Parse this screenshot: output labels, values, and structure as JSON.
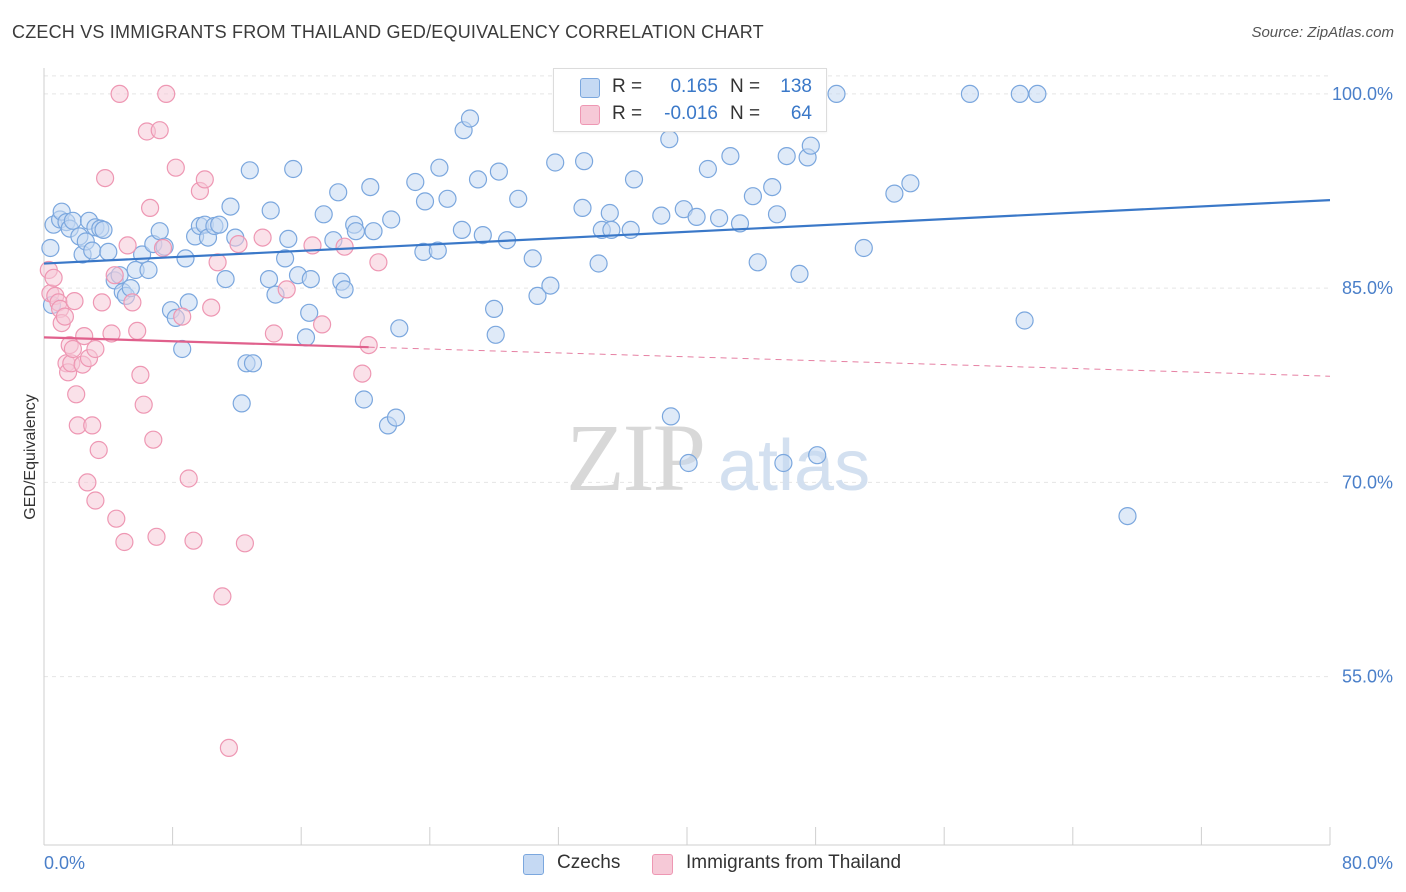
{
  "header": {
    "title": "CZECH VS IMMIGRANTS FROM THAILAND GED/EQUIVALENCY CORRELATION CHART",
    "source": "Source: ZipAtlas.com"
  },
  "legend": {
    "r_label": "R =",
    "n_label": "N =",
    "rows": [
      {
        "r": "0.165",
        "n": "138"
      },
      {
        "r": "-0.016",
        "n": "64"
      }
    ]
  },
  "watermark": {
    "zip": "ZIP",
    "atlas": "atlas"
  },
  "colors": {
    "blue": "#3a78c8",
    "blue_fill": "#c5d9f3",
    "blue_stroke": "#7ba7de",
    "pink": "#e0608c",
    "pink_fill": "#f6c9d7",
    "pink_stroke": "#ee97b3",
    "grid": "#e5e5e5",
    "axis_label": "#4a7fc9"
  },
  "chart_data": {
    "type": "scatter",
    "title": "CZECH VS IMMIGRANTS FROM THAILAND GED/EQUIVALENCY CORRELATION CHART",
    "xlabel": "",
    "ylabel": "GED/Equivalency",
    "xlim": [
      0,
      80
    ],
    "ylim": [
      42,
      102
    ],
    "x_tick_labels": [
      "0.0%",
      "80.0%"
    ],
    "y_ticks": [
      55,
      70,
      85,
      100
    ],
    "y_tick_labels": [
      "55.0%",
      "70.0%",
      "85.0%",
      "100.0%"
    ],
    "legend_location": "top-center",
    "series": [
      {
        "name": "Czechs",
        "r": 0.165,
        "n": 138,
        "trend": {
          "x0": 0,
          "y0": 86.9,
          "x1": 80,
          "y1": 91.8,
          "dashed_from": null
        },
        "points": [
          [
            0.4,
            88.1
          ],
          [
            0.5,
            83.7
          ],
          [
            0.6,
            89.9
          ],
          [
            1.0,
            90.3
          ],
          [
            1.1,
            90.9
          ],
          [
            1.4,
            90.1
          ],
          [
            1.6,
            89.6
          ],
          [
            1.8,
            90.2
          ],
          [
            2.2,
            89.0
          ],
          [
            2.4,
            87.6
          ],
          [
            2.6,
            88.6
          ],
          [
            2.8,
            90.2
          ],
          [
            3.0,
            87.9
          ],
          [
            3.2,
            89.7
          ],
          [
            3.5,
            89.6
          ],
          [
            3.7,
            89.5
          ],
          [
            4.0,
            87.8
          ],
          [
            4.4,
            85.6
          ],
          [
            4.7,
            86.0
          ],
          [
            4.9,
            84.7
          ],
          [
            5.1,
            84.4
          ],
          [
            5.4,
            85.0
          ],
          [
            5.7,
            86.4
          ],
          [
            6.1,
            87.6
          ],
          [
            6.5,
            86.4
          ],
          [
            6.8,
            88.4
          ],
          [
            7.2,
            89.4
          ],
          [
            7.5,
            88.2
          ],
          [
            7.9,
            83.3
          ],
          [
            8.2,
            82.7
          ],
          [
            8.6,
            80.3
          ],
          [
            8.8,
            87.3
          ],
          [
            9.0,
            83.9
          ],
          [
            9.4,
            89.0
          ],
          [
            9.7,
            89.8
          ],
          [
            10.0,
            89.9
          ],
          [
            10.2,
            88.9
          ],
          [
            10.6,
            89.8
          ],
          [
            10.9,
            89.9
          ],
          [
            11.3,
            85.7
          ],
          [
            11.6,
            91.3
          ],
          [
            11.9,
            88.9
          ],
          [
            12.3,
            76.1
          ],
          [
            12.6,
            79.2
          ],
          [
            12.8,
            94.1
          ],
          [
            13.0,
            79.2
          ],
          [
            14.0,
            85.7
          ],
          [
            14.1,
            91.0
          ],
          [
            14.4,
            84.5
          ],
          [
            15.0,
            87.3
          ],
          [
            15.2,
            88.8
          ],
          [
            15.5,
            94.2
          ],
          [
            15.8,
            86.0
          ],
          [
            16.3,
            81.2
          ],
          [
            16.5,
            83.1
          ],
          [
            16.6,
            85.7
          ],
          [
            17.4,
            90.7
          ],
          [
            18.0,
            88.7
          ],
          [
            18.3,
            92.4
          ],
          [
            18.5,
            85.5
          ],
          [
            18.7,
            84.9
          ],
          [
            19.3,
            89.9
          ],
          [
            19.4,
            89.4
          ],
          [
            19.9,
            76.4
          ],
          [
            20.3,
            92.8
          ],
          [
            20.5,
            89.4
          ],
          [
            21.4,
            74.4
          ],
          [
            21.6,
            90.3
          ],
          [
            21.9,
            75.0
          ],
          [
            22.1,
            81.9
          ],
          [
            23.1,
            93.2
          ],
          [
            23.6,
            87.8
          ],
          [
            23.7,
            91.7
          ],
          [
            24.5,
            87.9
          ],
          [
            24.6,
            94.3
          ],
          [
            25.1,
            91.9
          ],
          [
            26.0,
            89.5
          ],
          [
            26.1,
            97.2
          ],
          [
            26.5,
            98.1
          ],
          [
            27.0,
            93.4
          ],
          [
            27.3,
            89.1
          ],
          [
            28.0,
            83.4
          ],
          [
            28.1,
            81.4
          ],
          [
            28.3,
            94.0
          ],
          [
            28.8,
            88.7
          ],
          [
            29.5,
            91.9
          ],
          [
            30.4,
            87.3
          ],
          [
            30.7,
            84.4
          ],
          [
            31.5,
            85.2
          ],
          [
            31.8,
            94.7
          ],
          [
            32.6,
            98.5
          ],
          [
            33.5,
            91.2
          ],
          [
            33.6,
            94.8
          ],
          [
            34.5,
            86.9
          ],
          [
            34.7,
            89.5
          ],
          [
            35.2,
            90.8
          ],
          [
            35.3,
            89.5
          ],
          [
            36.5,
            89.5
          ],
          [
            36.7,
            93.4
          ],
          [
            37.5,
            100.0
          ],
          [
            38.4,
            90.6
          ],
          [
            38.9,
            96.5
          ],
          [
            39.0,
            75.1
          ],
          [
            39.8,
            91.1
          ],
          [
            40.1,
            71.5
          ],
          [
            40.6,
            90.5
          ],
          [
            41.3,
            94.2
          ],
          [
            42.0,
            90.4
          ],
          [
            42.7,
            95.2
          ],
          [
            43.3,
            90.0
          ],
          [
            44.1,
            92.1
          ],
          [
            44.4,
            87.0
          ],
          [
            45.3,
            92.8
          ],
          [
            45.6,
            90.7
          ],
          [
            46.0,
            71.5
          ],
          [
            46.2,
            95.2
          ],
          [
            47.0,
            86.1
          ],
          [
            47.5,
            95.1
          ],
          [
            47.7,
            96.0
          ],
          [
            48.1,
            72.1
          ],
          [
            49.3,
            100.0
          ],
          [
            51.0,
            88.1
          ],
          [
            52.9,
            92.3
          ],
          [
            53.9,
            93.1
          ],
          [
            57.6,
            100.0
          ],
          [
            60.7,
            100.0
          ],
          [
            61.0,
            82.5
          ],
          [
            61.8,
            100.0
          ],
          [
            67.4,
            67.4
          ]
        ]
      },
      {
        "name": "Immigrants from Thailand",
        "r": -0.016,
        "n": 64,
        "trend": {
          "x0": 0,
          "y0": 81.2,
          "x1": 80,
          "y1": 78.2,
          "dashed_from": 20.2
        },
        "points": [
          [
            0.3,
            86.4
          ],
          [
            0.4,
            84.6
          ],
          [
            0.6,
            85.8
          ],
          [
            0.7,
            84.4
          ],
          [
            0.9,
            83.9
          ],
          [
            1.0,
            83.4
          ],
          [
            1.1,
            82.3
          ],
          [
            1.3,
            82.8
          ],
          [
            1.4,
            79.2
          ],
          [
            1.5,
            78.5
          ],
          [
            1.6,
            80.6
          ],
          [
            1.7,
            79.2
          ],
          [
            1.8,
            80.3
          ],
          [
            1.9,
            84.0
          ],
          [
            2.0,
            76.8
          ],
          [
            2.1,
            74.4
          ],
          [
            2.4,
            79.1
          ],
          [
            2.5,
            81.3
          ],
          [
            2.7,
            70.0
          ],
          [
            2.8,
            79.6
          ],
          [
            3.0,
            74.4
          ],
          [
            3.2,
            80.3
          ],
          [
            3.2,
            68.6
          ],
          [
            3.4,
            72.5
          ],
          [
            3.6,
            83.9
          ],
          [
            3.8,
            93.5
          ],
          [
            4.2,
            81.5
          ],
          [
            4.4,
            86.0
          ],
          [
            4.5,
            67.2
          ],
          [
            4.7,
            100.0
          ],
          [
            5.0,
            65.4
          ],
          [
            5.2,
            88.3
          ],
          [
            5.5,
            83.9
          ],
          [
            5.8,
            81.7
          ],
          [
            6.0,
            78.3
          ],
          [
            6.2,
            76.0
          ],
          [
            6.4,
            97.1
          ],
          [
            6.6,
            91.2
          ],
          [
            6.8,
            73.3
          ],
          [
            7.0,
            65.8
          ],
          [
            7.2,
            97.2
          ],
          [
            7.4,
            88.1
          ],
          [
            7.6,
            100.0
          ],
          [
            8.2,
            94.3
          ],
          [
            8.6,
            82.8
          ],
          [
            9.0,
            70.3
          ],
          [
            9.3,
            65.5
          ],
          [
            9.7,
            92.5
          ],
          [
            10.0,
            93.4
          ],
          [
            10.4,
            83.5
          ],
          [
            10.8,
            87.0
          ],
          [
            11.1,
            61.2
          ],
          [
            11.5,
            49.5
          ],
          [
            12.1,
            88.4
          ],
          [
            12.5,
            65.3
          ],
          [
            13.6,
            88.9
          ],
          [
            14.3,
            81.5
          ],
          [
            15.1,
            84.9
          ],
          [
            16.7,
            88.3
          ],
          [
            17.3,
            82.2
          ],
          [
            18.7,
            88.2
          ],
          [
            19.8,
            78.4
          ],
          [
            20.2,
            80.6
          ],
          [
            20.8,
            87.0
          ]
        ]
      }
    ]
  },
  "bottom_legend": {
    "items": [
      "Czechs",
      "Immigrants from Thailand"
    ]
  }
}
